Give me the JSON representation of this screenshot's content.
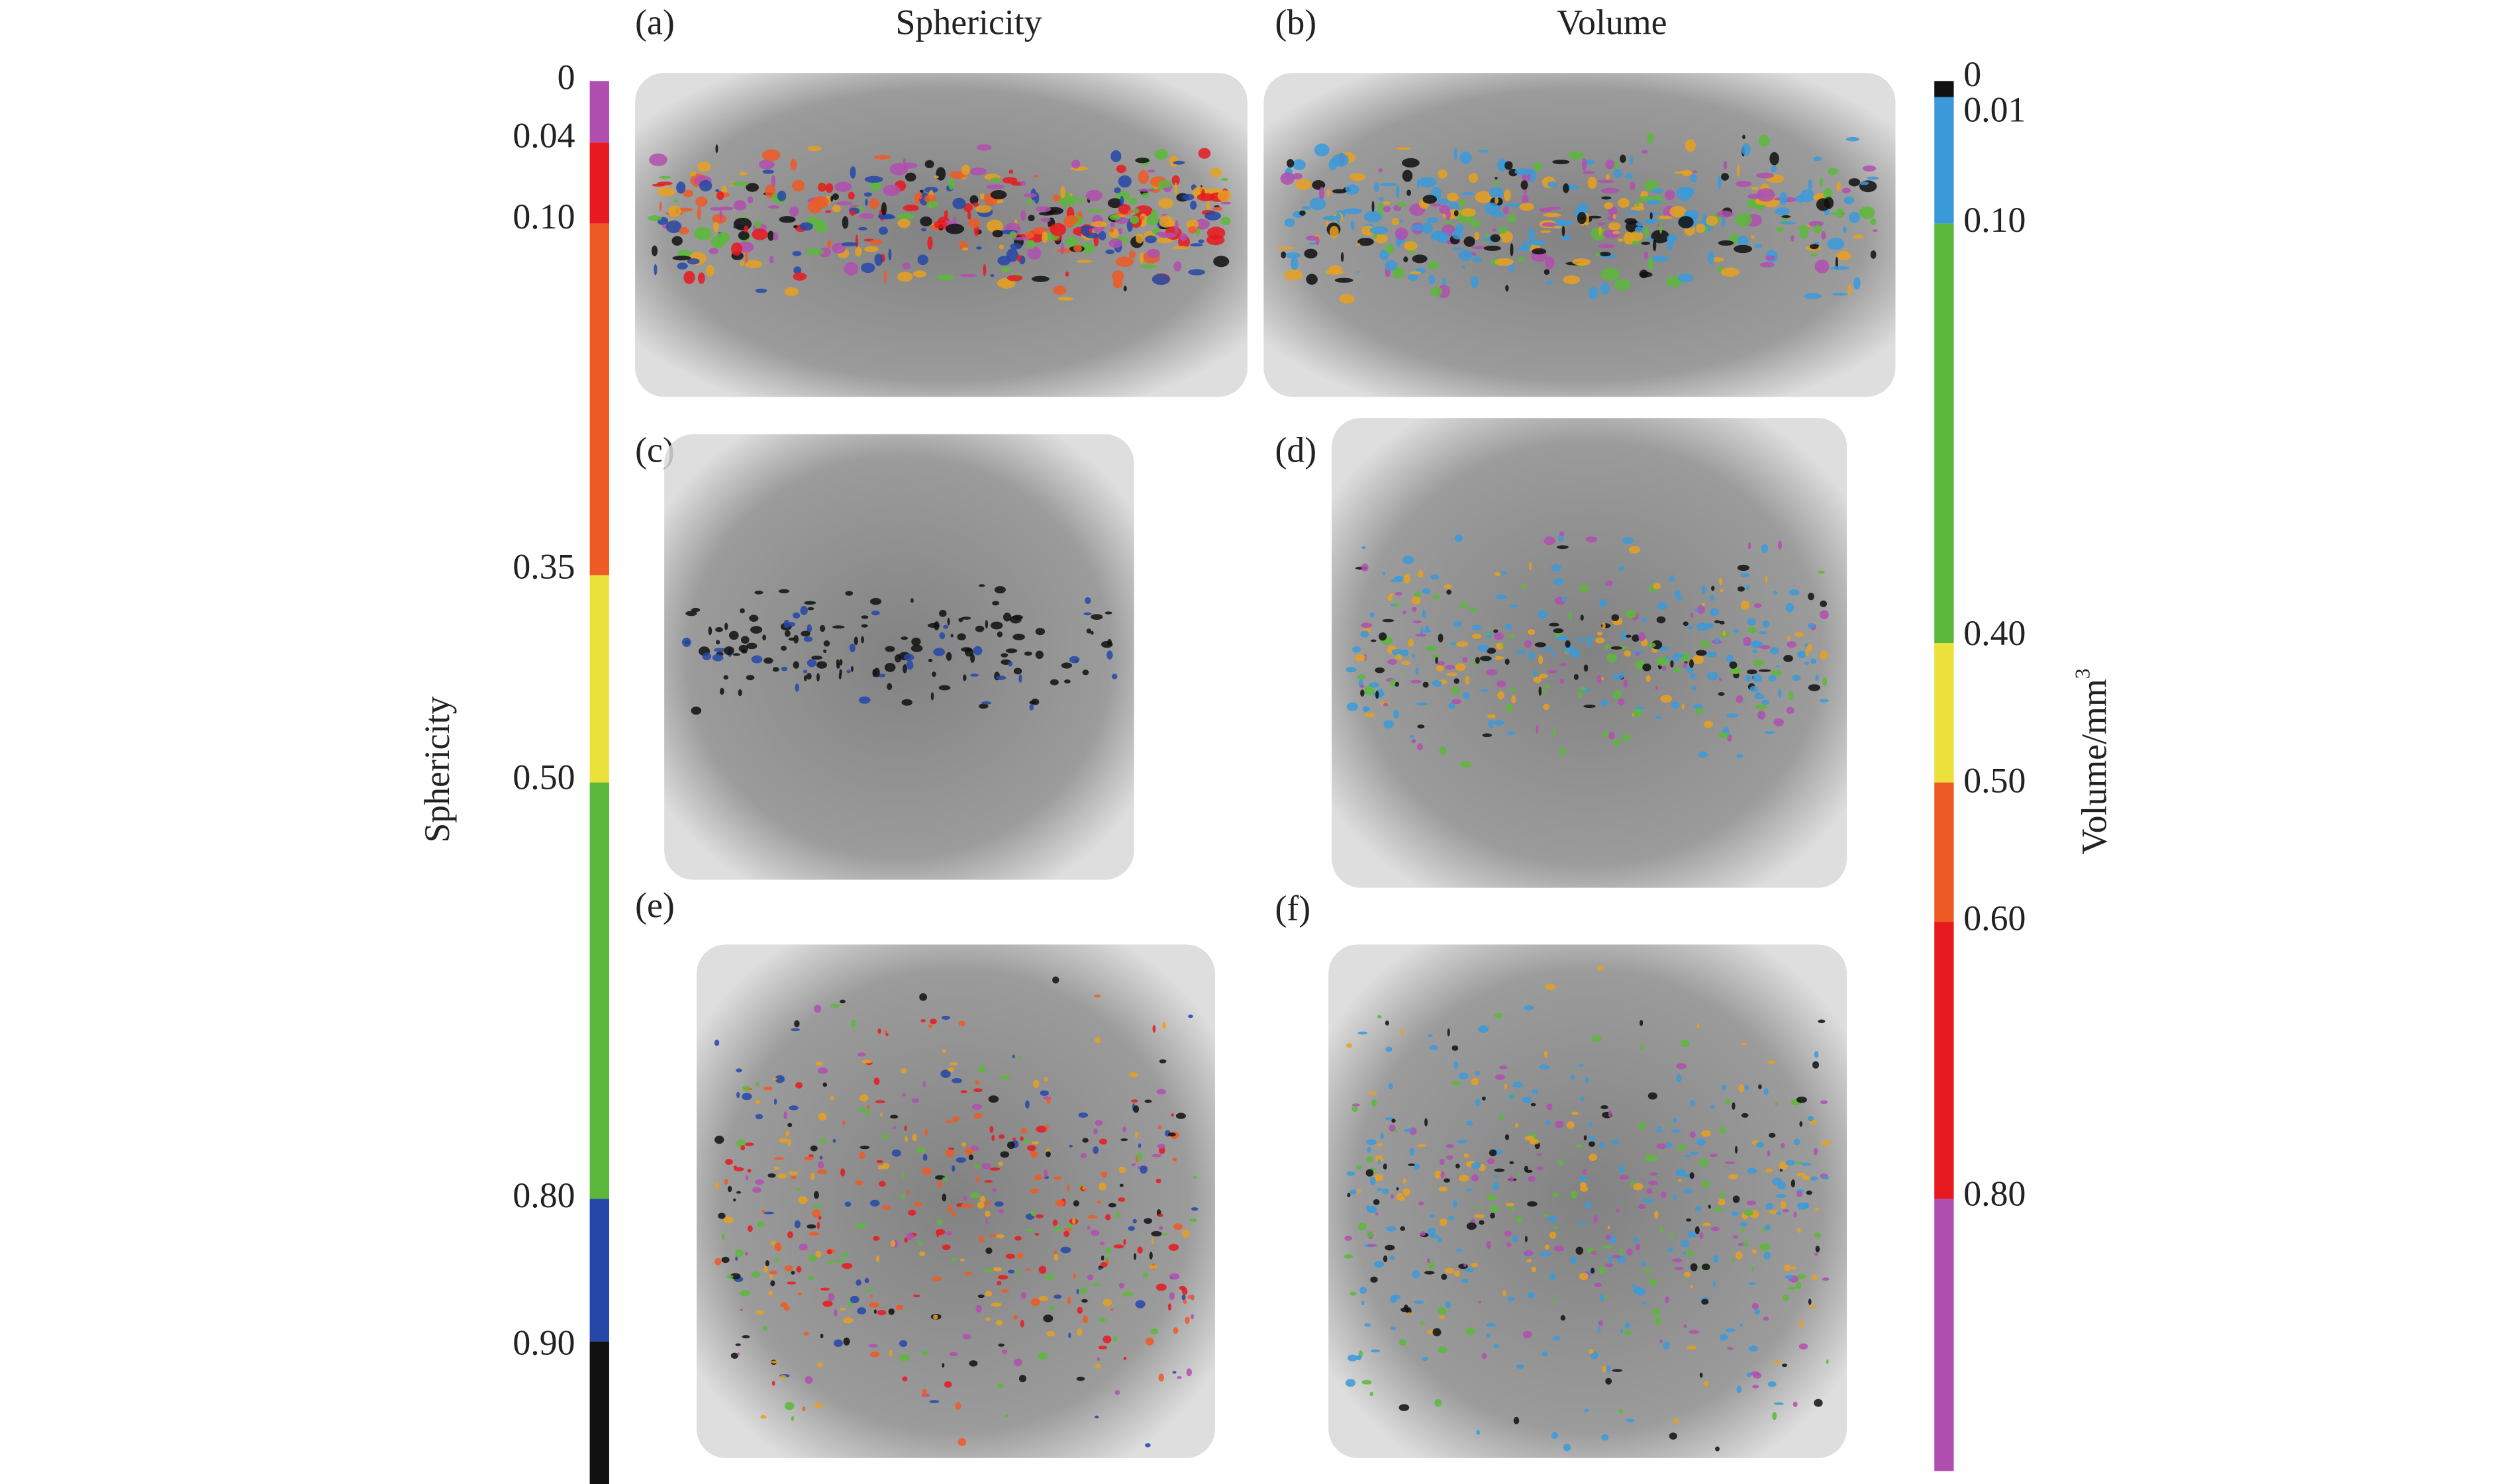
{
  "headers": [
    "Sphericity",
    "Volume"
  ],
  "panels": [
    "(a)",
    "(b)",
    "(c)",
    "(d)",
    "(e)",
    "(f)"
  ],
  "left_colorbar": {
    "title": "Sphericity",
    "ticks": [
      "0",
      "0.04",
      "0.10",
      "0.35",
      "0.50",
      "0.80",
      "0.90"
    ],
    "colors": [
      "#b04fb0",
      "#e8191f",
      "#ee5a24",
      "#ece13a",
      "#5cb83a",
      "#2447a8",
      "#111111"
    ]
  },
  "right_colorbar": {
    "title": "Volume/mm",
    "title_superscript": "3",
    "ticks": [
      "0",
      "0.01",
      "0.10",
      "0.40",
      "0.50",
      "0.60",
      "0.80"
    ],
    "colors": [
      "#111111",
      "#3a9ad9",
      "#5cb83a",
      "#ece13a",
      "#ee5a24",
      "#e8191f",
      "#b04fb0"
    ]
  }
}
